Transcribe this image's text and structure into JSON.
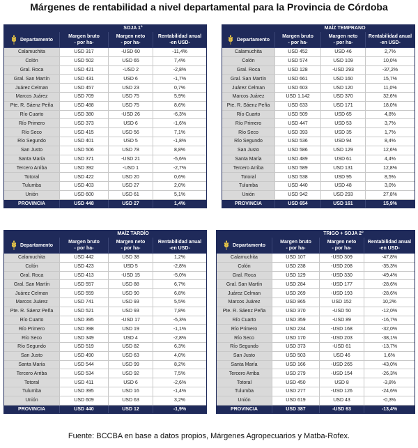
{
  "title": "Márgenes de rentabilidad a nivel departamental para la Provincia de Córdoba",
  "footer": "Fuente: BCCBA en base a datos propios, Márgenes Agropecuarios y Matba-Rofex.",
  "headers": [
    [
      "Departamento"
    ],
    [
      "Margen bruto",
      "- por ha-"
    ],
    [
      "Margen neto",
      "- por ha-"
    ],
    [
      "Rentabilidad anual",
      "-en USD-"
    ]
  ],
  "tables": [
    {
      "title": "SOJA 1°",
      "rows": [
        [
          "Calamuchita",
          "USD 317",
          "-USD 60",
          "-11,4%"
        ],
        [
          "Colón",
          "USD 502",
          "USD 65",
          "7,4%"
        ],
        [
          "Gral. Roca",
          "USD 421",
          "-USD 2",
          "-2,8%"
        ],
        [
          "Gral. San Martín",
          "USD 431",
          "USD 6",
          "-1,7%"
        ],
        [
          "Juárez Celman",
          "USD 457",
          "USD 23",
          "0,7%"
        ],
        [
          "Marcos Juárez",
          "USD 709",
          "USD 75",
          "5,9%"
        ],
        [
          "Pte. R. Sáenz Peña",
          "USD 488",
          "USD 75",
          "8,6%"
        ],
        [
          "Río Cuarto",
          "USD 380",
          "-USD 26",
          "-6,3%"
        ],
        [
          "Río Primero",
          "USD 373",
          "USD 6",
          "-1,6%"
        ],
        [
          "Río Seco",
          "USD 415",
          "USD 56",
          "7,1%"
        ],
        [
          "Río Segundo",
          "USD 401",
          "USD 5",
          "-1,8%"
        ],
        [
          "San Justo",
          "USD 506",
          "USD 78",
          "8,8%"
        ],
        [
          "Santa María",
          "USD 371",
          "-USD 21",
          "-5,6%"
        ],
        [
          "Tercero Arriba",
          "USD 392",
          "-USD 1",
          "-2,7%"
        ],
        [
          "Totoral",
          "USD 422",
          "USD 20",
          "0,6%"
        ],
        [
          "Tulumba",
          "USD 403",
          "USD 27",
          "2,0%"
        ],
        [
          "Unión",
          "USD 600",
          "USD 61",
          "5,1%"
        ]
      ],
      "total": [
        "PROVINCIA",
        "USD 448",
        "USD 27",
        "1,4%"
      ]
    },
    {
      "title": "MAÍZ TEMPRANO",
      "rows": [
        [
          "Calamuchita",
          "USD 452",
          "USD 46",
          "2,7%"
        ],
        [
          "Colón",
          "USD 574",
          "USD 109",
          "10,0%"
        ],
        [
          "Gral. Roca",
          "USD 128",
          "-USD 293",
          "-37,2%"
        ],
        [
          "Gral. San Martín",
          "USD 661",
          "USD 160",
          "15,7%"
        ],
        [
          "Juárez Celman",
          "USD 603",
          "USD 120",
          "11,0%"
        ],
        [
          "Marcos Juárez",
          "USD 1.142",
          "USD 370",
          "32,6%"
        ],
        [
          "Pte. R. Sáenz Peña",
          "USD 633",
          "USD 171",
          "18,0%"
        ],
        [
          "Río Cuarto",
          "USD 509",
          "USD 65",
          "4,8%"
        ],
        [
          "Río Primero",
          "USD 447",
          "USD 53",
          "3,7%"
        ],
        [
          "Río Seco",
          "USD 393",
          "USD 35",
          "1,7%"
        ],
        [
          "Río Segundo",
          "USD 536",
          "USD 94",
          "8,4%"
        ],
        [
          "San Justo",
          "USD 586",
          "USD 129",
          "12,6%"
        ],
        [
          "Santa María",
          "USD 489",
          "USD 61",
          "4,4%"
        ],
        [
          "Tercero Arriba",
          "USD 589",
          "USD 131",
          "12,8%"
        ],
        [
          "Totoral",
          "USD 538",
          "USD 95",
          "8,5%"
        ],
        [
          "Tulumba",
          "USD 440",
          "USD 48",
          "3,0%"
        ],
        [
          "Unión",
          "USD 942",
          "USD 293",
          "27,8%"
        ]
      ],
      "total": [
        "PROVINCIA",
        "USD 654",
        "USD 161",
        "15,9%"
      ]
    },
    {
      "title": "MAÍZ TARDÍO",
      "rows": [
        [
          "Calamuchita",
          "USD 442",
          "USD 38",
          "1,2%"
        ],
        [
          "Colón",
          "USD 423",
          "USD 5",
          "-2,8%"
        ],
        [
          "Gral. Roca",
          "USD 413",
          "-USD 15",
          "-5,0%"
        ],
        [
          "Gral. San Martín",
          "USD 557",
          "USD 88",
          "6,7%"
        ],
        [
          "Juárez Celman",
          "USD 559",
          "USD 90",
          "6,8%"
        ],
        [
          "Marcos Juárez",
          "USD 741",
          "USD 93",
          "5,5%"
        ],
        [
          "Pte. R. Sáenz Peña",
          "USD 521",
          "USD 93",
          "7,8%"
        ],
        [
          "Río Cuarto",
          "USD 395",
          "-USD 17",
          "-5,3%"
        ],
        [
          "Río Primero",
          "USD 398",
          "USD 19",
          "-1,1%"
        ],
        [
          "Río Seco",
          "USD 349",
          "USD 4",
          "-2,8%"
        ],
        [
          "Río Segundo",
          "USD 519",
          "USD 82",
          "6,3%"
        ],
        [
          "San Justo",
          "USD 490",
          "USD 63",
          "4,0%"
        ],
        [
          "Santa María",
          "USD 544",
          "USD 99",
          "8,2%"
        ],
        [
          "Tercero Arriba",
          "USD 534",
          "USD 92",
          "7,5%"
        ],
        [
          "Totoral",
          "USD 411",
          "USD 6",
          "-2,6%"
        ],
        [
          "Tulumba",
          "USD 395",
          "USD 16",
          "-1,4%"
        ],
        [
          "Unión",
          "USD 609",
          "USD 63",
          "3,2%"
        ]
      ],
      "total": [
        "PROVINCIA",
        "USD 440",
        "USD 12",
        "-1,9%"
      ]
    },
    {
      "title": "TRIGO + SOJA 2°",
      "rows": [
        [
          "Calamuchita",
          "USD 107",
          "-USD 309",
          "-47,8%"
        ],
        [
          "Colón",
          "USD 238",
          "-USD 208",
          "-35,3%"
        ],
        [
          "Gral. Roca",
          "USD 129",
          "-USD 330",
          "-49,4%"
        ],
        [
          "Gral. San Martín",
          "USD 284",
          "-USD 177",
          "-28,6%"
        ],
        [
          "Juárez Celman",
          "USD 269",
          "-USD 193",
          "-28,6%"
        ],
        [
          "Marcos Juárez",
          "USD 865",
          "USD 152",
          "10,2%"
        ],
        [
          "Pte. R. Sáenz Peña",
          "USD 370",
          "-USD 50",
          "-12,0%"
        ],
        [
          "Río Cuarto",
          "USD 359",
          "-USD 89",
          "-16,7%"
        ],
        [
          "Río Primero",
          "USD 234",
          "-USD 168",
          "-32,0%"
        ],
        [
          "Río Seco",
          "USD 170",
          "-USD 203",
          "-38,1%"
        ],
        [
          "Río Segundo",
          "USD 373",
          "-USD 61",
          "-13,7%"
        ],
        [
          "San Justo",
          "USD 503",
          "USD 46",
          "1,6%"
        ],
        [
          "Santa María",
          "USD 166",
          "-USD 265",
          "-43,0%"
        ],
        [
          "Tercero Arriba",
          "USD 279",
          "-USD 154",
          "-26,3%"
        ],
        [
          "Totoral",
          "USD 450",
          "USD 8",
          "-3,8%"
        ],
        [
          "Tulumba",
          "USD 277",
          "-USD 126",
          "-24,6%"
        ],
        [
          "Unión",
          "USD 619",
          "USD 43",
          "-0,3%"
        ]
      ],
      "total": [
        "PROVINCIA",
        "USD 387",
        "-USD 63",
        "-13,4%"
      ]
    }
  ]
}
